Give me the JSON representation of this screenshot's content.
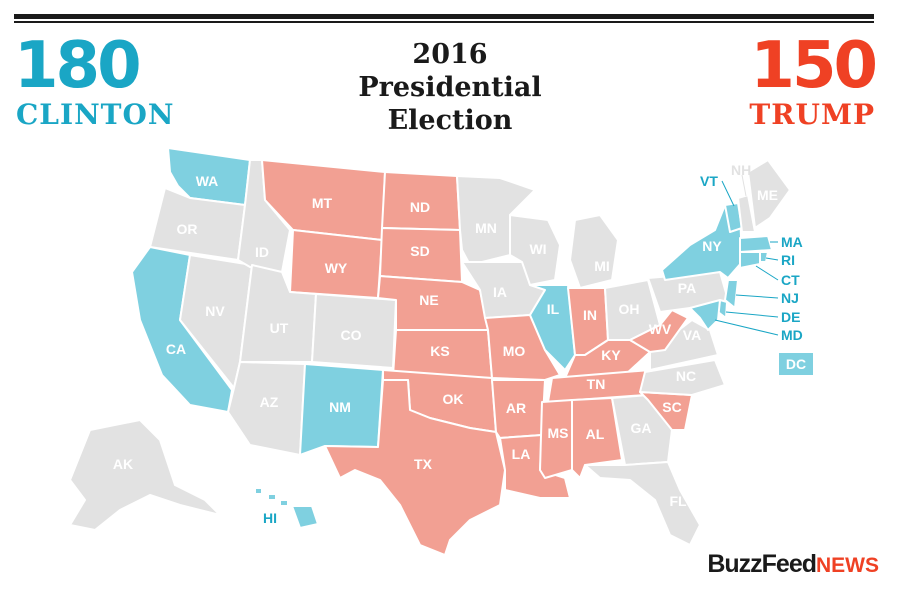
{
  "header": {
    "clinton_count": "180",
    "clinton_name": "CLINTON",
    "trump_count": "150",
    "trump_name": "TRUMP",
    "title_line1": "2016",
    "title_line2": "Presidential",
    "title_line3": "Election"
  },
  "colors": {
    "clinton": "#1aa6c5",
    "clinton_fill": "#7fd0e0",
    "trump": "#ef4124",
    "trump_fill": "#f2a093",
    "undecided": "#e2e2e2"
  },
  "states": {
    "WA": "WA",
    "OR": "OR",
    "CA": "CA",
    "NV": "NV",
    "ID": "ID",
    "MT": "MT",
    "WY": "WY",
    "UT": "UT",
    "CO": "CO",
    "AZ": "AZ",
    "NM": "NM",
    "ND": "ND",
    "SD": "SD",
    "NE": "NE",
    "KS": "KS",
    "OK": "OK",
    "TX": "TX",
    "MN": "MN",
    "IA": "IA",
    "MO": "MO",
    "AR": "AR",
    "LA": "LA",
    "WI": "WI",
    "IL": "IL",
    "MS": "MS",
    "AL": "AL",
    "TN": "TN",
    "KY": "KY",
    "IN": "IN",
    "MI": "MI",
    "OH": "OH",
    "WV": "WV",
    "VA": "VA",
    "NC": "NC",
    "SC": "SC",
    "GA": "GA",
    "FL": "FL",
    "PA": "PA",
    "NY": "NY",
    "VT": "VT",
    "NH": "NH",
    "ME": "ME",
    "MA": "MA",
    "RI": "RI",
    "CT": "CT",
    "NJ": "NJ",
    "DE": "DE",
    "MD": "MD",
    "DC": "DC",
    "AK": "AK",
    "HI": "HI"
  },
  "logo": {
    "brand": "BuzzFeed",
    "suffix": "NEWS"
  }
}
